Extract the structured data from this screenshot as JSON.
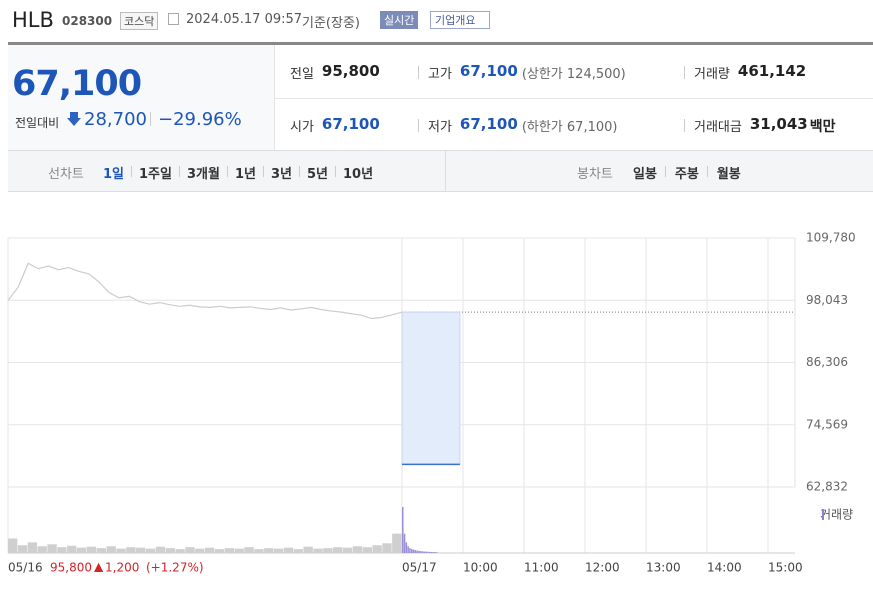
{
  "header": {
    "name": "HLB",
    "code": "028300",
    "market": "코스닥",
    "datetime": "2024.05.17 09:57",
    "basis": "기준(장중)",
    "realtime": "실시간",
    "company": "기업개요"
  },
  "quote": {
    "price": "67,100",
    "change_label": "전일대비",
    "change": "28,700",
    "change_pct": "−29.96%"
  },
  "stats": [
    [
      {
        "label": "전일",
        "value": "95,800"
      },
      {
        "label": "고가",
        "value": "67,100",
        "note": "(상한가 124,500)"
      },
      {
        "label": "거래량",
        "value": "461,142"
      }
    ],
    [
      {
        "label": "시가",
        "value": "67,100"
      },
      {
        "label": "저가",
        "value": "67,100",
        "note": "(하한가 67,100)"
      },
      {
        "label": "거래대금",
        "value": "31,043",
        "unit": "백만"
      }
    ]
  ],
  "tabs": {
    "line_label": "선차트",
    "line_tabs": [
      "1일",
      "1주일",
      "3개월",
      "1년",
      "3년",
      "5년",
      "10년"
    ],
    "candle_label": "봉차트",
    "candle_tabs": [
      "일봉",
      "주봉",
      "월봉"
    ]
  },
  "chart": {
    "type": "line",
    "ylim": [
      62832,
      109780
    ],
    "yticks": [
      {
        "value": 109780,
        "label": "109,780"
      },
      {
        "value": 98043,
        "label": "98,043"
      },
      {
        "value": 86306,
        "label": "86,306"
      },
      {
        "value": 74569,
        "label": "74,569"
      },
      {
        "value": 62832,
        "label": "62,832"
      }
    ],
    "prev_close": 95800,
    "prev_day": {
      "label": "05/16",
      "close": "95,800",
      "arrow": "▲",
      "change": "1,200",
      "change_pct": "(+1.27%)",
      "values": [
        98000,
        100500,
        105000,
        104000,
        104500,
        103800,
        104200,
        103500,
        103000,
        101500,
        99500,
        98500,
        98800,
        97800,
        97300,
        97600,
        97200,
        96900,
        97100,
        96800,
        96700,
        96900,
        96600,
        96700,
        96800,
        96500,
        96300,
        96600,
        96200,
        96400,
        96700,
        96300,
        96000,
        95800,
        95500,
        95200,
        94600,
        94800,
        95300,
        95800
      ],
      "color": "#cccccc"
    },
    "today": {
      "value": 67100,
      "color": "#3b6fd0",
      "fill": "#e3ecfa"
    },
    "xticks": [
      "05/17",
      "10:00",
      "11:00",
      "12:00",
      "13:00",
      "14:00",
      "15:00"
    ],
    "volume": {
      "label": "거래량",
      "color": "#9a8fd6",
      "prev_day": [
        30000,
        16000,
        22000,
        14000,
        18000,
        12000,
        15000,
        11000,
        13000,
        10000,
        14000,
        9000,
        12000,
        11000,
        9000,
        13000,
        10000,
        8000,
        12000,
        9000,
        11000,
        8000,
        10000,
        9000,
        12000,
        8000,
        10000,
        9000,
        11000,
        8000,
        13000,
        9000,
        10000,
        12000,
        11000,
        14000,
        12000,
        16000,
        20000,
        40000
      ],
      "today": [
        95000,
        40000,
        22000,
        14000,
        10000,
        8000,
        7000,
        6000,
        5000,
        4500,
        4000,
        3500,
        3000,
        3000,
        2500,
        2500,
        2000,
        2000,
        2000,
        1500
      ]
    }
  }
}
